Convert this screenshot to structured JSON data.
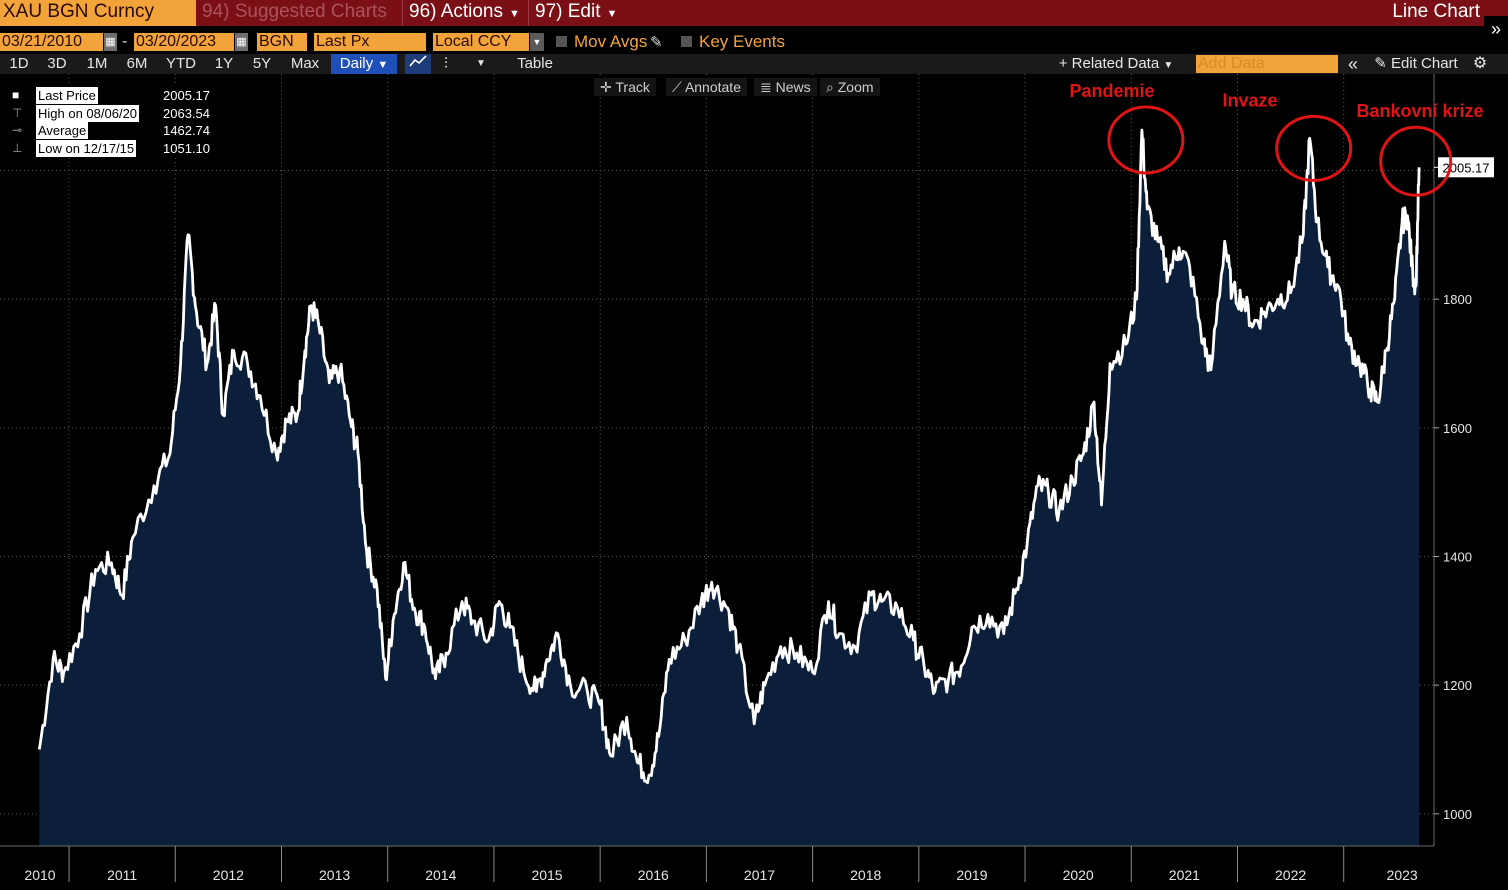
{
  "titlebar": {
    "ticker": "XAU BGN Curncy",
    "suggested": "94) Suggested Charts",
    "actions": "96) Actions",
    "edit": "97) Edit",
    "window_title": "Line Chart"
  },
  "controls": {
    "start_date": "03/21/2010",
    "date_separator": "-",
    "end_date": "03/20/2023",
    "source": "BGN",
    "field": "Last Px",
    "currency": "Local CCY",
    "mov_avgs": "Mov Avgs",
    "key_events": "Key Events"
  },
  "periods": [
    "1D",
    "3D",
    "1M",
    "6M",
    "YTD",
    "1Y",
    "5Y",
    "Max"
  ],
  "frequency": "Daily",
  "table_label": "Table",
  "related_data": "Related Data",
  "add_data_placeholder": "Add Data",
  "edit_chart": "Edit Chart",
  "tools": {
    "track": "Track",
    "annotate": "Annotate",
    "news": "News",
    "zoom": "Zoom"
  },
  "legend": {
    "last_label": "Last Price",
    "last_value": "2005.17",
    "high_label": "High on 08/06/20",
    "high_value": "2063.54",
    "avg_label": "Average",
    "avg_value": "1462.74",
    "low_label": "Low on 12/17/15",
    "low_value": "1051.10"
  },
  "current_price_tag": "2005.17",
  "annotations": [
    "Pandemie",
    "Invaze",
    "Bankovní krize"
  ],
  "colors": {
    "titlebar": "#7a0f16",
    "accent": "#f2a33a",
    "area_fill": "#0b1f3a",
    "line": "#ffffff",
    "annotation": "#e01414"
  },
  "chart_data": {
    "type": "area",
    "title": "",
    "ylim": [
      950,
      2150
    ],
    "y_ticks": [
      1000,
      1200,
      1400,
      1600,
      1800
    ],
    "x_tick_labels": [
      "2010",
      "2011",
      "2012",
      "2013",
      "2014",
      "2015",
      "2016",
      "2017",
      "2018",
      "2019",
      "2020",
      "2021",
      "2022",
      "2023"
    ],
    "grid": true,
    "series": [
      {
        "name": "Last Price",
        "points": [
          [
            2010.22,
            1100
          ],
          [
            2010.35,
            1240
          ],
          [
            2010.45,
            1220
          ],
          [
            2010.6,
            1280
          ],
          [
            2010.75,
            1380
          ],
          [
            2010.9,
            1390
          ],
          [
            2011.0,
            1340
          ],
          [
            2011.1,
            1430
          ],
          [
            2011.3,
            1510
          ],
          [
            2011.45,
            1560
          ],
          [
            2011.55,
            1700
          ],
          [
            2011.62,
            1900
          ],
          [
            2011.7,
            1780
          ],
          [
            2011.8,
            1700
          ],
          [
            2011.88,
            1790
          ],
          [
            2011.95,
            1620
          ],
          [
            2012.05,
            1720
          ],
          [
            2012.18,
            1700
          ],
          [
            2012.3,
            1650
          ],
          [
            2012.45,
            1560
          ],
          [
            2012.55,
            1610
          ],
          [
            2012.65,
            1620
          ],
          [
            2012.72,
            1720
          ],
          [
            2012.78,
            1790
          ],
          [
            2012.85,
            1760
          ],
          [
            2012.95,
            1670
          ],
          [
            2013.05,
            1690
          ],
          [
            2013.15,
            1610
          ],
          [
            2013.22,
            1560
          ],
          [
            2013.3,
            1410
          ],
          [
            2013.4,
            1350
          ],
          [
            2013.48,
            1210
          ],
          [
            2013.55,
            1300
          ],
          [
            2013.65,
            1390
          ],
          [
            2013.75,
            1320
          ],
          [
            2013.85,
            1290
          ],
          [
            2013.95,
            1210
          ],
          [
            2014.05,
            1250
          ],
          [
            2014.2,
            1330
          ],
          [
            2014.3,
            1300
          ],
          [
            2014.45,
            1270
          ],
          [
            2014.55,
            1330
          ],
          [
            2014.65,
            1290
          ],
          [
            2014.78,
            1220
          ],
          [
            2014.9,
            1190
          ],
          [
            2015.0,
            1240
          ],
          [
            2015.1,
            1280
          ],
          [
            2015.22,
            1200
          ],
          [
            2015.38,
            1190
          ],
          [
            2015.5,
            1170
          ],
          [
            2015.6,
            1090
          ],
          [
            2015.75,
            1150
          ],
          [
            2015.85,
            1080
          ],
          [
            2015.96,
            1060
          ],
          [
            2016.05,
            1120
          ],
          [
            2016.15,
            1240
          ],
          [
            2016.3,
            1270
          ],
          [
            2016.45,
            1330
          ],
          [
            2016.55,
            1360
          ],
          [
            2016.7,
            1320
          ],
          [
            2016.8,
            1260
          ],
          [
            2016.95,
            1140
          ],
          [
            2017.05,
            1200
          ],
          [
            2017.2,
            1260
          ],
          [
            2017.35,
            1250
          ],
          [
            2017.5,
            1220
          ],
          [
            2017.65,
            1330
          ],
          [
            2017.75,
            1280
          ],
          [
            2017.9,
            1260
          ],
          [
            2018.05,
            1340
          ],
          [
            2018.15,
            1330
          ],
          [
            2018.3,
            1320
          ],
          [
            2018.45,
            1270
          ],
          [
            2018.55,
            1230
          ],
          [
            2018.65,
            1190
          ],
          [
            2018.78,
            1210
          ],
          [
            2018.9,
            1230
          ],
          [
            2019.0,
            1290
          ],
          [
            2019.15,
            1310
          ],
          [
            2019.3,
            1280
          ],
          [
            2019.42,
            1350
          ],
          [
            2019.52,
            1420
          ],
          [
            2019.62,
            1510
          ],
          [
            2019.72,
            1500
          ],
          [
            2019.82,
            1470
          ],
          [
            2019.95,
            1520
          ],
          [
            2020.05,
            1560
          ],
          [
            2020.15,
            1640
          ],
          [
            2020.22,
            1480
          ],
          [
            2020.3,
            1700
          ],
          [
            2020.45,
            1730
          ],
          [
            2020.55,
            1800
          ],
          [
            2020.6,
            2063
          ],
          [
            2020.65,
            1940
          ],
          [
            2020.75,
            1890
          ],
          [
            2020.85,
            1840
          ],
          [
            2020.95,
            1880
          ],
          [
            2021.05,
            1850
          ],
          [
            2021.18,
            1730
          ],
          [
            2021.25,
            1690
          ],
          [
            2021.38,
            1890
          ],
          [
            2021.45,
            1810
          ],
          [
            2021.55,
            1800
          ],
          [
            2021.65,
            1760
          ],
          [
            2021.75,
            1780
          ],
          [
            2021.88,
            1800
          ],
          [
            2022.0,
            1810
          ],
          [
            2022.12,
            1900
          ],
          [
            2022.18,
            2050
          ],
          [
            2022.25,
            1920
          ],
          [
            2022.35,
            1850
          ],
          [
            2022.45,
            1820
          ],
          [
            2022.55,
            1730
          ],
          [
            2022.65,
            1700
          ],
          [
            2022.75,
            1660
          ],
          [
            2022.82,
            1640
          ],
          [
            2022.9,
            1720
          ],
          [
            2022.98,
            1800
          ],
          [
            2023.05,
            1920
          ],
          [
            2023.1,
            1930
          ],
          [
            2023.15,
            1840
          ],
          [
            2023.18,
            1820
          ],
          [
            2023.21,
            2005
          ]
        ]
      }
    ]
  }
}
